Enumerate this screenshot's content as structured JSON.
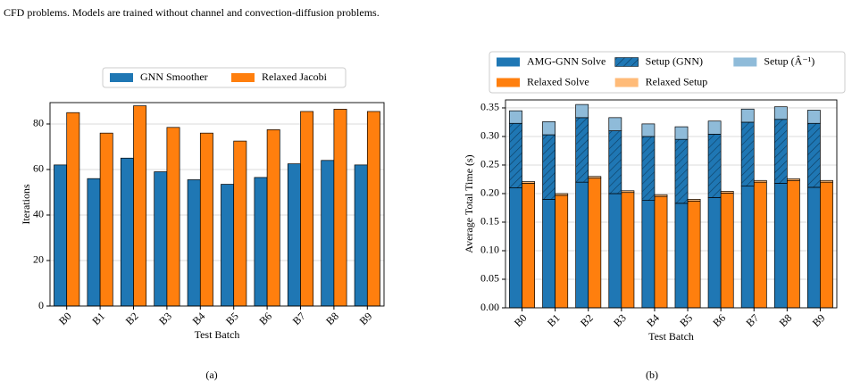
{
  "caption": "CFD problems. Models are trained without channel and convection-diffusion problems.",
  "subcaptions": [
    "(a)",
    "(b)"
  ],
  "chart_data": [
    {
      "type": "bar",
      "xlabel": "Test Batch",
      "ylabel": "Iterations",
      "categories": [
        "B0",
        "B1",
        "B2",
        "B3",
        "B4",
        "B5",
        "B6",
        "B7",
        "B8",
        "B9"
      ],
      "series": [
        {
          "name": "GNN Smoother",
          "color": "#1f77b4",
          "values": [
            62,
            56,
            65,
            59,
            55.5,
            53.5,
            56.5,
            62.5,
            64,
            62
          ]
        },
        {
          "name": "Relaxed Jacobi",
          "color": "#ff7f0e",
          "values": [
            85,
            76,
            88,
            78.5,
            76,
            72.5,
            77.5,
            85.5,
            86.5,
            85.5
          ]
        }
      ],
      "ylim": [
        0,
        89.4
      ],
      "yticks": [
        0,
        20,
        40,
        60,
        80
      ],
      "grid": true,
      "legend": "top"
    },
    {
      "type": "stacked_bar",
      "xlabel": "Test Batch",
      "ylabel": "Average Total Time (s)",
      "categories": [
        "B0",
        "B1",
        "B2",
        "B3",
        "B4",
        "B5",
        "B6",
        "B7",
        "B8",
        "B9"
      ],
      "series": [
        {
          "name": "AMG-GNN Solve",
          "color": "#1f77b4",
          "stack": 0,
          "values": [
            0.21,
            0.19,
            0.22,
            0.2,
            0.188,
            0.183,
            0.193,
            0.213,
            0.218,
            0.211
          ]
        },
        {
          "name": "Relaxed Solve",
          "color": "#ff7f0e",
          "stack": 1,
          "values": [
            0.218,
            0.197,
            0.227,
            0.202,
            0.195,
            0.187,
            0.201,
            0.22,
            0.223,
            0.22
          ]
        },
        {
          "name": "Setup (GNN)",
          "color": "#1f77b4",
          "stack": 0,
          "hatch": true,
          "values": [
            0.113,
            0.113,
            0.113,
            0.11,
            0.112,
            0.112,
            0.111,
            0.112,
            0.112,
            0.112
          ]
        },
        {
          "name": "Relaxed Setup",
          "color": "#ffbb78",
          "stack": 1,
          "values": [
            0.003,
            0.003,
            0.003,
            0.003,
            0.003,
            0.003,
            0.003,
            0.003,
            0.003,
            0.003
          ]
        },
        {
          "name": "Setup (Â⁻¹)",
          "color": "#8fbbd9",
          "stack": 0,
          "values": [
            0.022,
            0.023,
            0.023,
            0.023,
            0.022,
            0.022,
            0.023,
            0.023,
            0.022,
            0.023
          ]
        }
      ],
      "ylim": [
        0,
        0.364
      ],
      "yticks": [
        {
          "value": 0,
          "label": "0.00"
        },
        0.05,
        {
          "value": 0.1,
          "label": "0.10"
        },
        0.15,
        {
          "value": 0.2,
          "label": "0.20"
        },
        0.25,
        {
          "value": 0.3,
          "label": "0.30"
        },
        0.35
      ],
      "grid": true,
      "legend": "top"
    }
  ]
}
